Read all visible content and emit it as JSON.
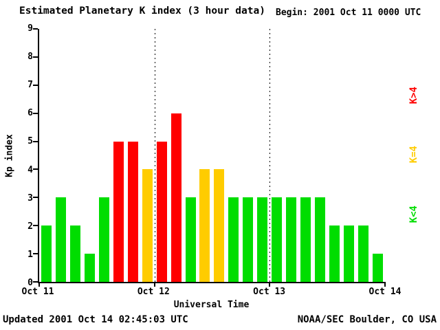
{
  "header": {
    "title": "Estimated Planetary K index (3 hour data)",
    "begin_label": "Begin: 2001 Oct 11 0000 UTC"
  },
  "footer": {
    "updated": "Updated 2001 Oct 14 02:45:03 UTC",
    "source": "NOAA/SEC Boulder, CO USA"
  },
  "legend": [
    {
      "label": "K>4",
      "color": "#ff0000"
    },
    {
      "label": "K=4",
      "color": "#ffcc00"
    },
    {
      "label": "K<4",
      "color": "#00dd00"
    }
  ],
  "chart_data": {
    "type": "bar",
    "title": "Estimated Planetary K index (3 hour data)",
    "xlabel": "Universal Time",
    "ylabel": "Kp index",
    "ylim": [
      0,
      9
    ],
    "y_ticks": [
      0,
      1,
      2,
      3,
      4,
      5,
      6,
      7,
      8,
      9
    ],
    "x_tick_labels": [
      "Oct 11",
      "Oct 12",
      "Oct 13",
      "Oct 14"
    ],
    "bar_interval_hours": 3,
    "values": [
      2,
      3,
      2,
      1,
      3,
      5,
      5,
      4,
      5,
      6,
      3,
      4,
      4,
      3,
      3,
      3,
      3,
      3,
      3,
      3,
      2,
      2,
      2,
      1
    ],
    "colors": {
      "low": "#00dd00",
      "mid": "#ffcc00",
      "high": "#ff0000"
    },
    "color_rule": "green if K<4, yellow if K=4, red if K>4",
    "grid": "dotted vertical lines at day boundaries",
    "legend_position": "right",
    "background": "#ffffff"
  }
}
